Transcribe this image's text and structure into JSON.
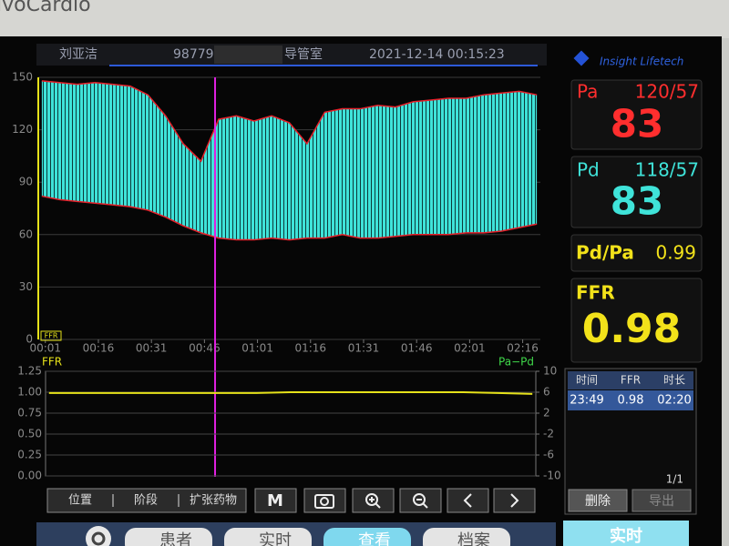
{
  "brand": "ivoCardio",
  "header": {
    "patient": "刘亚洁",
    "id": "98779",
    "room": "导管室",
    "datetime": "2021-12-14 00:15:23"
  },
  "logo": "Insight Lifetech",
  "readouts": {
    "pa": {
      "label": "Pa",
      "range": "120/57",
      "value": "83"
    },
    "pd": {
      "label": "Pd",
      "range": "118/57",
      "value": "83"
    },
    "ratio": {
      "label": "Pd/Pa",
      "value": "0.99"
    },
    "ffr": {
      "label": "FFR",
      "value": "0.98"
    }
  },
  "pressure_chart": {
    "type": "band",
    "x": [
      0,
      5,
      10,
      15,
      20,
      25,
      30,
      35,
      40,
      45,
      50,
      55,
      60,
      65,
      70,
      75,
      80,
      85,
      90,
      95,
      100,
      105,
      110,
      115,
      120,
      125,
      130,
      135,
      140
    ],
    "upper": [
      148,
      147,
      146,
      147,
      146,
      145,
      140,
      128,
      112,
      102,
      126,
      128,
      125,
      128,
      124,
      112,
      130,
      132,
      132,
      134,
      133,
      136,
      137,
      138,
      138,
      140,
      141,
      142,
      140
    ],
    "lower": [
      82,
      80,
      79,
      78,
      77,
      76,
      74,
      70,
      65,
      61,
      58,
      57,
      57,
      58,
      57,
      58,
      58,
      60,
      58,
      58,
      59,
      60,
      60,
      60,
      61,
      61,
      62,
      64,
      66
    ],
    "fill_color": "#3fe3d9",
    "edge_color": "#e8202a",
    "xlim": [
      -1,
      141
    ],
    "ylim": [
      0,
      150
    ],
    "yticks": [
      0,
      30,
      60,
      90,
      120,
      150
    ],
    "xticks": [
      {
        "value": 1,
        "label": "00:01"
      },
      {
        "value": 16,
        "label": "00:16"
      },
      {
        "value": 31,
        "label": "00:31"
      },
      {
        "value": 46,
        "label": "00:46"
      },
      {
        "value": 61,
        "label": "01:01"
      },
      {
        "value": 76,
        "label": "01:16"
      },
      {
        "value": 91,
        "label": "01:31"
      },
      {
        "value": 106,
        "label": "01:46"
      },
      {
        "value": 121,
        "label": "02:01"
      },
      {
        "value": 136,
        "label": "02:16"
      }
    ],
    "grid": true,
    "cursor": 49,
    "marker_label": "FFR"
  },
  "ffr_chart": {
    "type": "line",
    "left_label": "FFR",
    "right_label": "Pa−Pd",
    "x": [
      0,
      10,
      20,
      30,
      40,
      50,
      60,
      70,
      80,
      90,
      100,
      110,
      120,
      130,
      140
    ],
    "series": [
      {
        "name": "FFR",
        "color": "#e6e21a",
        "values": [
          0.99,
          0.99,
          0.99,
          0.99,
          0.99,
          0.99,
          0.99,
          1.0,
          1.0,
          1.0,
          1.0,
          1.0,
          1.0,
          0.99,
          0.98
        ]
      }
    ],
    "xlim": [
      -1,
      141
    ],
    "ylim": [
      0,
      1.25
    ],
    "yticks": [
      {
        "value": 0,
        "label": "0.00"
      },
      0.25,
      {
        "value": 0.5,
        "label": "0.50"
      },
      0.75,
      {
        "value": 1,
        "label": "1.00"
      },
      1.25
    ],
    "y2lim": [
      -10,
      10
    ],
    "y2ticks": [
      10,
      6,
      2,
      -2,
      -6,
      -10
    ],
    "grid": true
  },
  "toolbar": {
    "segments": [
      "位置",
      "阶段",
      "扩张药物"
    ],
    "m_button": "M"
  },
  "tabs": [
    "患者",
    "实时",
    "查看",
    "档案"
  ],
  "results": {
    "headers": [
      "时间",
      "FFR",
      "时长"
    ],
    "rows": [
      [
        "23:49",
        "0.98",
        "02:20"
      ]
    ],
    "page": "1/1",
    "buttons": [
      "删除",
      "导出"
    ]
  },
  "mode_button": "实时"
}
